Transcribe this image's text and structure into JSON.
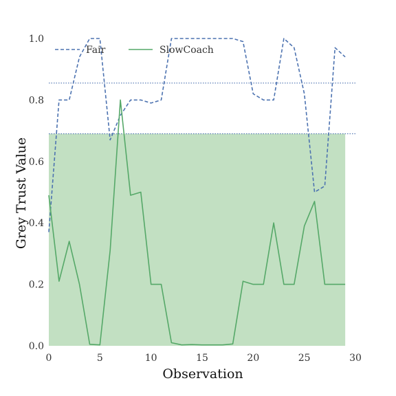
{
  "chart_data": {
    "type": "line",
    "title": "",
    "xlabel": "Observation",
    "ylabel": "Grey Trust Value",
    "xlim": [
      0,
      30
    ],
    "ylim": [
      0,
      1.0
    ],
    "x_ticks": [
      "0",
      "5",
      "10",
      "15",
      "20",
      "25",
      "30"
    ],
    "y_ticks": [
      "0.0",
      "0.2",
      "0.4",
      "0.6",
      "0.8",
      "1.0"
    ],
    "grid": false,
    "legend": {
      "position": "top-left",
      "entries": [
        "Fair",
        "SlowCoach"
      ]
    },
    "series": [
      {
        "name": "Fair",
        "style": "dashed",
        "color": "#4c72b0",
        "x": [
          0,
          1,
          2,
          3,
          4,
          5,
          6,
          7,
          8,
          9,
          10,
          11,
          12,
          13,
          14,
          15,
          16,
          17,
          18,
          19,
          20,
          21,
          22,
          23,
          24,
          25,
          26,
          27,
          28,
          29
        ],
        "values": [
          0.37,
          0.8,
          0.8,
          0.94,
          1.0,
          1.0,
          0.67,
          0.75,
          0.8,
          0.8,
          0.79,
          0.8,
          1.0,
          1.0,
          1.0,
          1.0,
          1.0,
          1.0,
          1.0,
          0.99,
          0.82,
          0.8,
          0.8,
          1.0,
          0.97,
          0.82,
          0.5,
          0.52,
          0.97,
          0.94
        ]
      },
      {
        "name": "SlowCoach",
        "style": "solid",
        "color": "#55a868",
        "x": [
          0,
          1,
          2,
          3,
          4,
          5,
          6,
          7,
          8,
          9,
          10,
          11,
          12,
          13,
          14,
          15,
          16,
          17,
          18,
          19,
          20,
          21,
          22,
          23,
          24,
          25,
          26,
          27,
          28,
          29
        ],
        "values": [
          0.49,
          0.21,
          0.34,
          0.2,
          0.005,
          0.003,
          0.31,
          0.8,
          0.49,
          0.5,
          0.2,
          0.2,
          0.01,
          0.003,
          0.004,
          0.003,
          0.003,
          0.003,
          0.006,
          0.21,
          0.2,
          0.2,
          0.4,
          0.2,
          0.2,
          0.39,
          0.47,
          0.2,
          0.2,
          0.2
        ]
      }
    ],
    "reference_lines": [
      {
        "y": 0.855,
        "style": "dotted",
        "color": "#4c72b0"
      },
      {
        "y": 0.69,
        "style": "dotted",
        "color": "#4c72b0"
      }
    ],
    "fill": {
      "x_start": 0,
      "x_end": 29,
      "y_top": 0.69,
      "color": "#c2e0c2"
    }
  }
}
